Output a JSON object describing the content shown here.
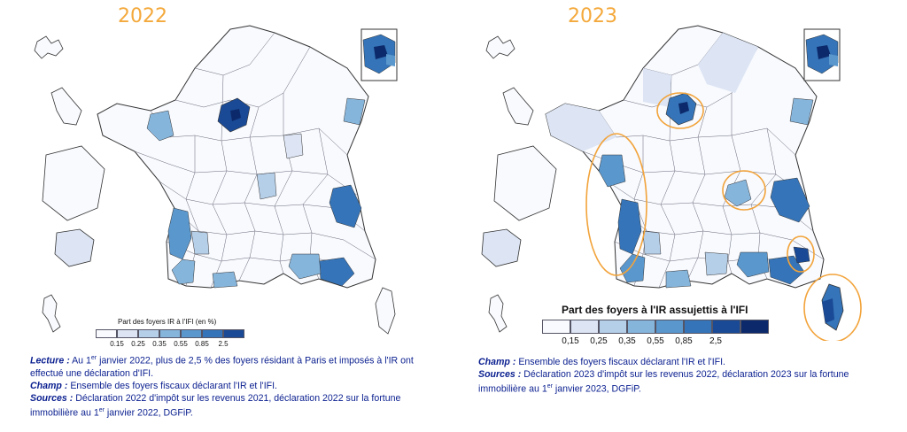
{
  "colors": {
    "scale": [
      "#f8fafe",
      "#dde5f4",
      "#b6cfe9",
      "#86b5dc",
      "#5a97cd",
      "#3574b8",
      "#1a4a96",
      "#0c2a6b"
    ],
    "highlight": "#f2a33a",
    "note_text": "#0a1f8f",
    "year_text": "#f4a93c"
  },
  "map_2022": {
    "year": "2022",
    "legend": {
      "title": "Part des foyers IR à l'IFI (en %)",
      "ticks": [
        "0.15",
        "0.25",
        "0.35",
        "0.55",
        "0.85",
        "2.5"
      ]
    },
    "notes": {
      "lecture_label": "Lecture :",
      "lecture_pre": " Au 1",
      "lecture_sup": "er",
      "lecture_post": " janvier 2022, plus de 2,5 % des foyers résidant à Paris et imposés à l'IR ont effectué une déclaration d'IFI.",
      "champ_label": "Champ :",
      "champ_text": " Ensemble des foyers fiscaux déclarant l'IR et l'IFI.",
      "sources_label": "Sources :",
      "sources_pre": " Déclaration 2022 d'impôt sur les revenus 2021, déclaration 2022 sur la fortune immobilière au 1",
      "sources_sup": "er",
      "sources_post": " janvier 2022, DGFiP."
    }
  },
  "map_2023": {
    "year": "2023",
    "legend": {
      "title": "Part des foyers à l'IR assujettis à l'IFI",
      "ticks": [
        "0,15",
        "0,25",
        "0,35",
        "0,55",
        "0,85",
        "2,5"
      ]
    },
    "notes": {
      "champ_label": "Champ :",
      "champ_text": " Ensemble des foyers fiscaux déclarant l'IR et l'IFI.",
      "sources_label": "Sources :",
      "sources_pre": " Déclaration 2023 d'impôt sur les revenus 2022, déclaration 2023 sur la fortune immobilière au 1",
      "sources_sup": "er",
      "sources_post": " janvier 2023, DGFiP."
    }
  }
}
